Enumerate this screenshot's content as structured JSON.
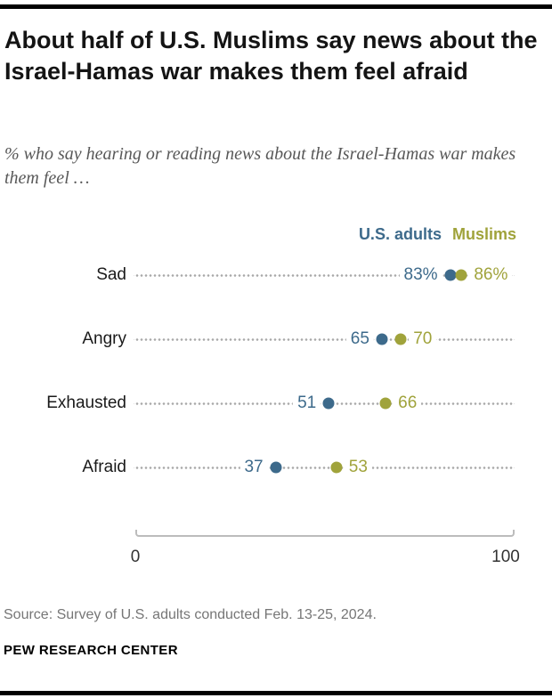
{
  "header": {
    "title": "About half of U.S. Muslims say news about the Israel-Hamas war makes them feel afraid",
    "subtitle": "% who say hearing or reading news about the Israel-Hamas war makes them feel …"
  },
  "chart_data": {
    "type": "scatter",
    "subtype": "dot-plot",
    "categories": [
      "Sad",
      "Angry",
      "Exhausted",
      "Afraid"
    ],
    "series": [
      {
        "name": "U.S. adults",
        "color": "#3d6a8b",
        "values": [
          83,
          65,
          51,
          37
        ],
        "value_labels": [
          "83%",
          "65",
          "51",
          "37"
        ]
      },
      {
        "name": "Muslims",
        "color": "#a0a33b",
        "values": [
          86,
          70,
          66,
          53
        ],
        "value_labels": [
          "86%",
          "70",
          "66",
          "53"
        ]
      }
    ],
    "xlim": [
      0,
      100
    ],
    "x_ticks": [
      "0",
      "100"
    ],
    "legend_position": "top-right",
    "grid": "dotted leader lines per category row"
  },
  "footer": {
    "source": "Source: Survey of U.S. adults conducted Feb. 13-25, 2024.",
    "brand": "PEW RESEARCH CENTER"
  }
}
